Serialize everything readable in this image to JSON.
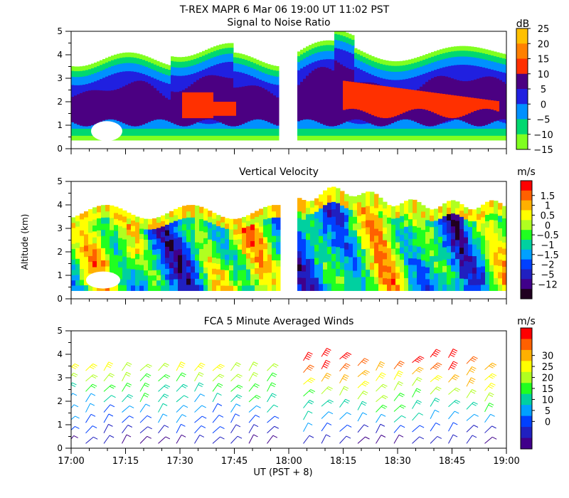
{
  "figure": {
    "title": "T-REX   MAPR   6 Mar 06   19:00 UT   11:02   PST",
    "xlabel": "UT  (PST + 8)",
    "ylabel": "Altitude (km)"
  },
  "chart_data": [
    {
      "type": "heatmap",
      "title": "Signal to Noise Ratio",
      "units": "dB",
      "x_range": [
        "17:00",
        "19:00"
      ],
      "ylim": [
        0,
        5
      ],
      "yticks": [
        "0",
        "1",
        "2",
        "3",
        "4",
        "5"
      ],
      "colorbar_ticks": [
        "25",
        "20",
        "15",
        "10",
        "5",
        "0",
        "−5",
        "−10",
        "−15"
      ],
      "colorbar_colors": [
        "#ffc000",
        "#ff8000",
        "#ff3000",
        "#4b0082",
        "#2020e0",
        "#0090ff",
        "#00d870",
        "#80ff20"
      ]
    },
    {
      "type": "heatmap",
      "title": "Vertical Velocity",
      "units": "m/s",
      "x_range": [
        "17:00",
        "19:00"
      ],
      "ylim": [
        0,
        5
      ],
      "yticks": [
        "0",
        "1",
        "2",
        "3",
        "4",
        "5"
      ],
      "colorbar_ticks": [
        "1.5",
        "1",
        "0.5",
        "0",
        "−0.5",
        "−1",
        "−1.5",
        "−2",
        "−5",
        "−12"
      ],
      "colorbar_colors": [
        "#ff0000",
        "#ff6000",
        "#ffb000",
        "#ffff00",
        "#b0ff20",
        "#20ff20",
        "#00d0a0",
        "#00a0ff",
        "#0040ff",
        "#2020c0",
        "#40008a",
        "#200020"
      ]
    },
    {
      "type": "barbs",
      "title": "FCA 5 Minute Averaged Winds",
      "units": "m/s",
      "x_range": [
        "17:00",
        "19:00"
      ],
      "ylim": [
        0,
        5
      ],
      "yticks": [
        "0",
        "1",
        "2",
        "3",
        "4",
        "5"
      ],
      "colorbar_ticks": [
        "30",
        "25",
        "20",
        "15",
        "10",
        "5",
        "0"
      ],
      "colorbar_colors": [
        "#ff0000",
        "#ff6000",
        "#ffb000",
        "#ffff00",
        "#b0ff20",
        "#20ff20",
        "#00d0a0",
        "#00a0ff",
        "#0040ff",
        "#2020c0",
        "#40008a"
      ]
    }
  ],
  "xticks": [
    "17:00",
    "17:15",
    "17:30",
    "17:45",
    "18:00",
    "18:15",
    "18:30",
    "18:45",
    "19:00"
  ]
}
